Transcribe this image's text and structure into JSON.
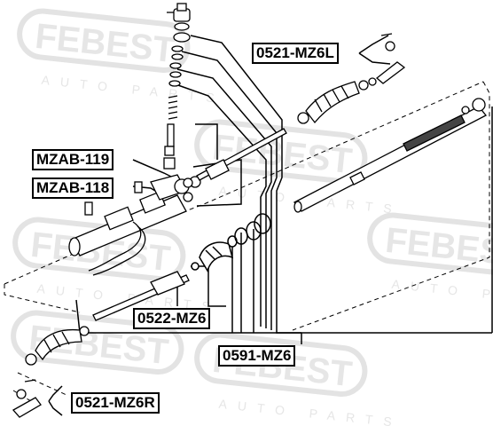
{
  "watermark": {
    "brand": "FEBEST",
    "sub": "AUTO PARTS",
    "color": "#e3e3e3"
  },
  "labels": {
    "mz6l": "0521-MZ6L",
    "mzab119": "MZAB-119",
    "mzab118": "MZAB-118",
    "mz6_0522": "0522-MZ6",
    "mz6_0591": "0591-MZ6",
    "mz6r": "0521-MZ6R"
  },
  "colors": {
    "line": "#000000",
    "background": "#ffffff"
  }
}
